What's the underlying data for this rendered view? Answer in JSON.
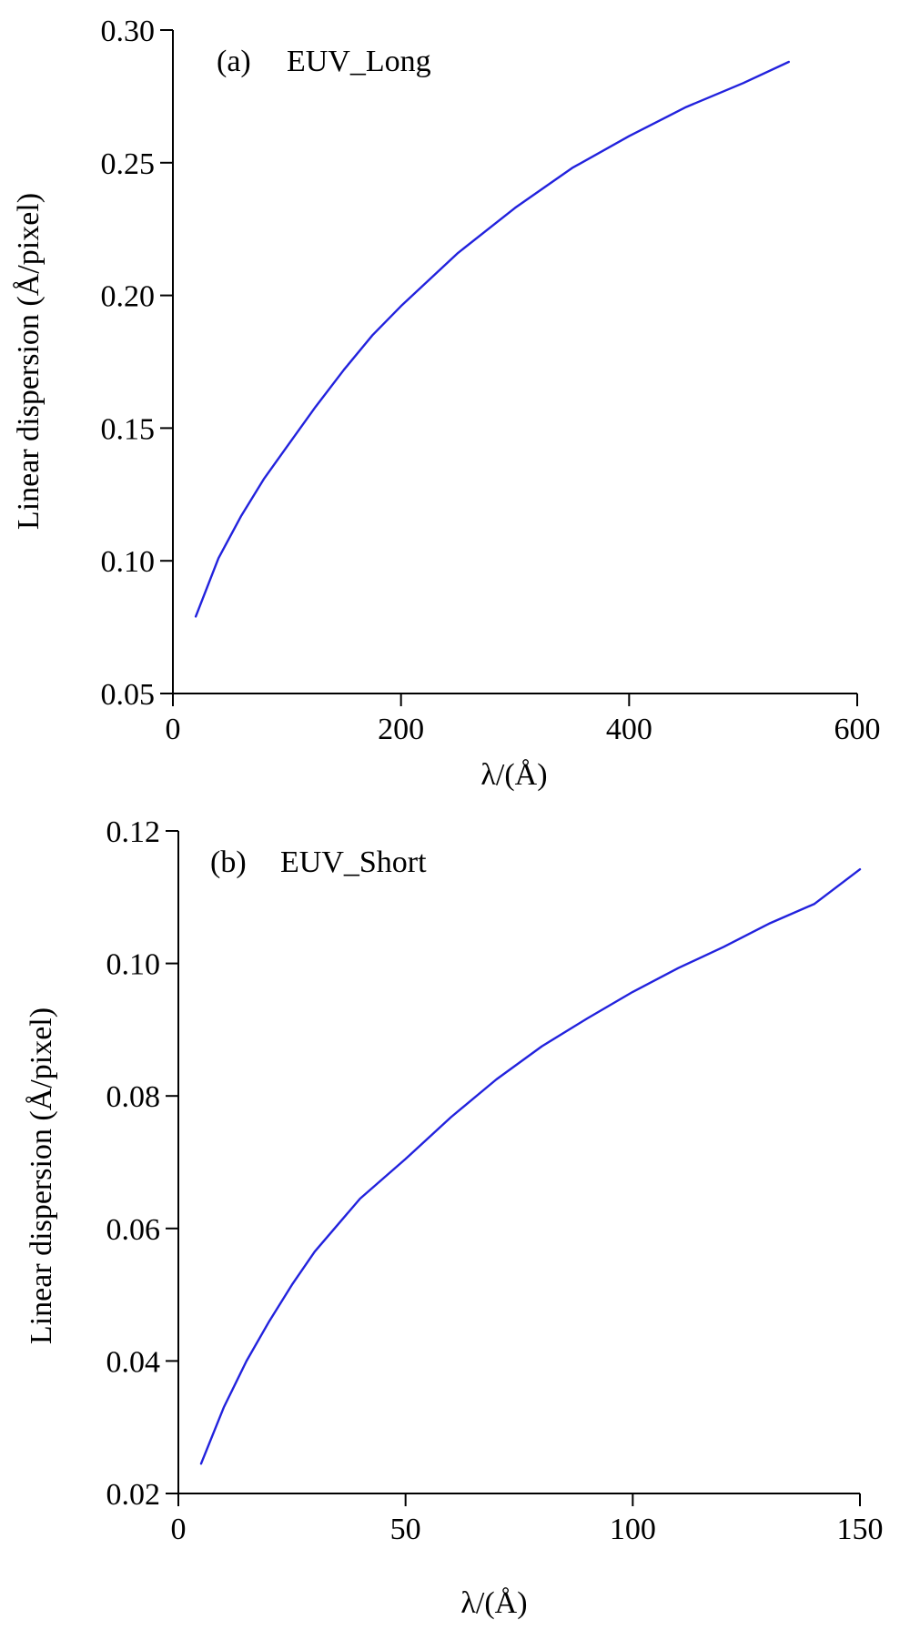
{
  "chart_data": [
    {
      "type": "line",
      "panel_label": "(a)",
      "title": "EUV_Long",
      "xlabel": "λ/(Å)",
      "ylabel": "Linear dispersion (Å/pixel)",
      "xlim": [
        0,
        600
      ],
      "ylim": [
        0.05,
        0.3
      ],
      "x_ticks": [
        0,
        200,
        400,
        600
      ],
      "x_tick_labels": [
        "0",
        "200",
        "400",
        "600"
      ],
      "y_ticks": [
        0.05,
        0.1,
        0.15,
        0.2,
        0.25,
        0.3
      ],
      "y_tick_labels": [
        "0.05",
        "0.10",
        "0.15",
        "0.20",
        "0.25",
        "0.30"
      ],
      "grid": false,
      "series": [
        {
          "color": "#2222dd",
          "x": [
            20,
            40,
            60,
            80,
            100,
            125,
            150,
            175,
            200,
            250,
            300,
            350,
            400,
            450,
            500,
            540
          ],
          "y": [
            0.079,
            0.101,
            0.117,
            0.131,
            0.143,
            0.158,
            0.172,
            0.185,
            0.196,
            0.216,
            0.233,
            0.248,
            0.26,
            0.271,
            0.28,
            0.288
          ]
        }
      ]
    },
    {
      "type": "line",
      "panel_label": "(b)",
      "title": "EUV_Short",
      "xlabel": "λ/(Å)",
      "ylabel": "Linear dispersion (Å/pixel)",
      "xlim": [
        0,
        150
      ],
      "ylim": [
        0.02,
        0.12
      ],
      "x_ticks": [
        0,
        50,
        100,
        150
      ],
      "x_tick_labels": [
        "0",
        "50",
        "100",
        "150"
      ],
      "y_ticks": [
        0.02,
        0.04,
        0.06,
        0.08,
        0.1,
        0.12
      ],
      "y_tick_labels": [
        "0.02",
        "0.04",
        "0.06",
        "0.08",
        "0.10",
        "0.12"
      ],
      "grid": false,
      "series": [
        {
          "color": "#2222dd",
          "x": [
            5,
            10,
            15,
            20,
            25,
            30,
            40,
            50,
            60,
            70,
            80,
            90,
            100,
            110,
            120,
            130,
            140,
            150
          ],
          "y": [
            0.0245,
            0.033,
            0.04,
            0.046,
            0.0515,
            0.0565,
            0.0645,
            0.0705,
            0.0768,
            0.0825,
            0.0875,
            0.0917,
            0.0957,
            0.0993,
            0.1025,
            0.106,
            0.109,
            0.1142
          ]
        }
      ]
    }
  ]
}
